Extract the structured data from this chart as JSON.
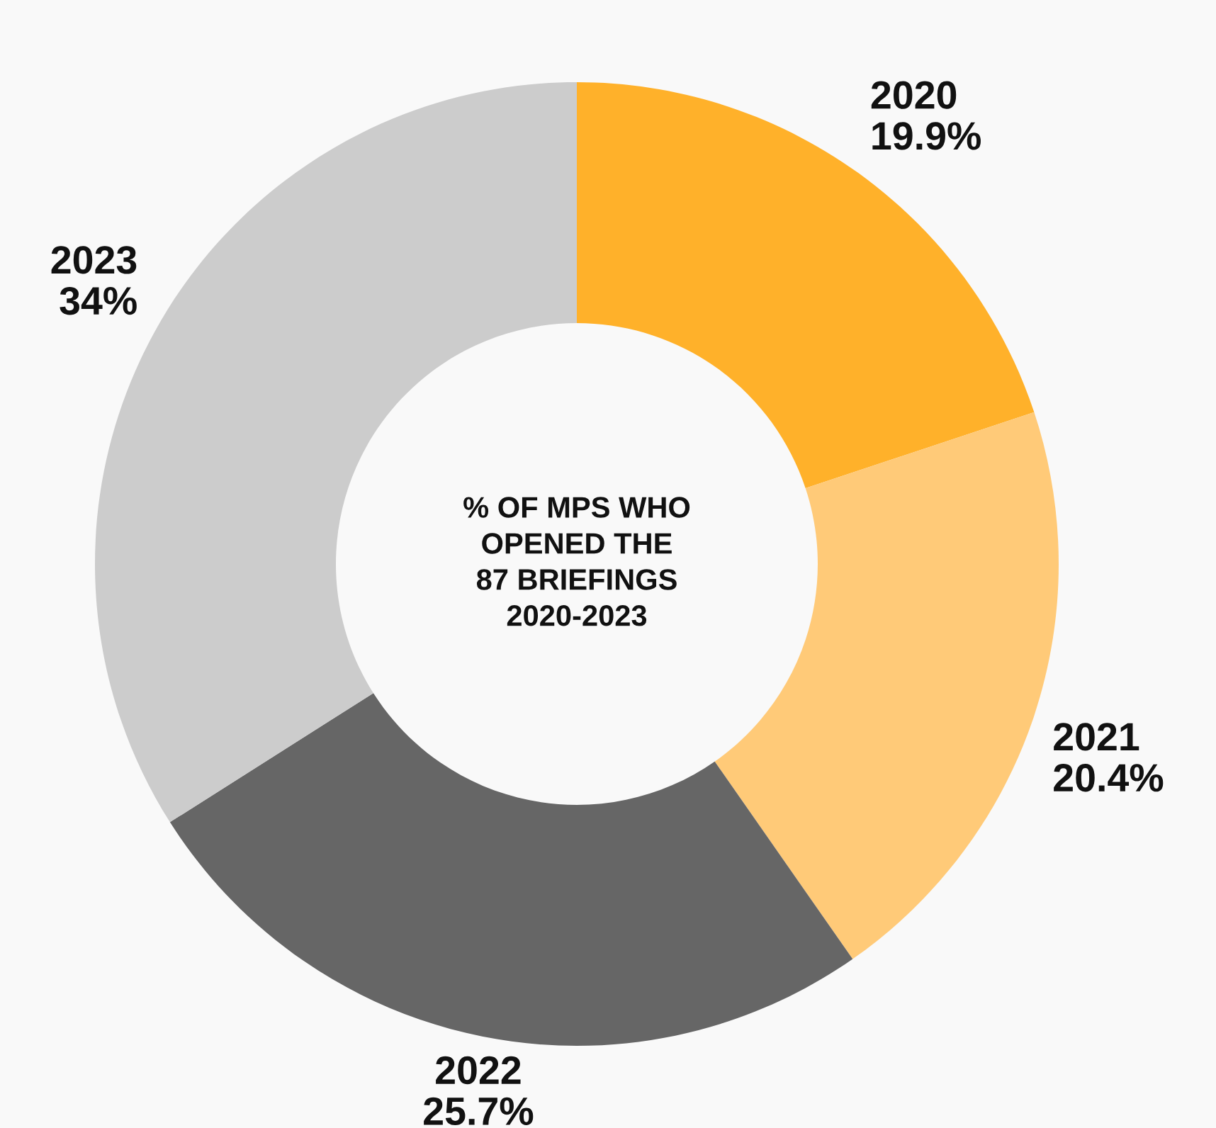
{
  "chart_data": {
    "type": "donut",
    "categories": [
      "2020",
      "2021",
      "2022",
      "2023"
    ],
    "values": [
      19.9,
      20.4,
      25.7,
      34
    ],
    "value_labels": [
      "19.9%",
      "20.4%",
      "25.7%",
      "34%"
    ],
    "colors": [
      "#ffb12a",
      "#ffca78",
      "#666666",
      "#cccccc"
    ],
    "annotations": [
      "% OF MPS WHO\nOPENED THE\n87 BRIEFINGS\n2020-2023"
    ],
    "legend": false
  }
}
